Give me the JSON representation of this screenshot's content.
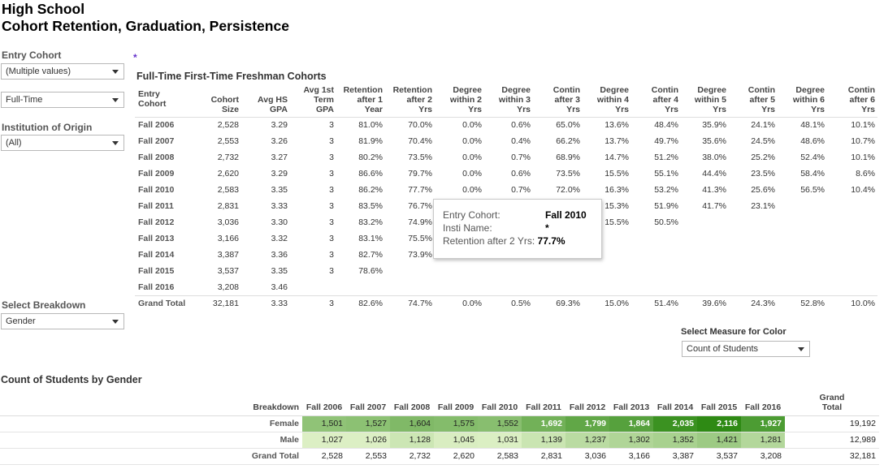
{
  "header": {
    "line1": "High School",
    "line2": "Cohort Retention, Graduation, Persistence"
  },
  "filters": {
    "entry_cohort_label": "Entry Cohort",
    "entry_cohort_value": "(Multiple values)",
    "enrollment_value": "Full-Time",
    "institution_label": "Institution of Origin",
    "institution_value": "(All)",
    "breakdown_label": "Select Breakdown",
    "breakdown_value": "Gender",
    "measure_label": "Select Measure for Color",
    "measure_value": "Count of Students"
  },
  "star_marker": "*",
  "cohort_table": {
    "title": "Full-Time First-Time Freshman Cohorts",
    "headers": [
      [
        "Entry Cohort"
      ],
      [
        "Cohort",
        "Size"
      ],
      [
        "Avg HS",
        "GPA"
      ],
      [
        "Avg 1st",
        "Term",
        "GPA"
      ],
      [
        "Retention",
        "after 1",
        "Year"
      ],
      [
        "Retention",
        "after 2",
        "Yrs"
      ],
      [
        "Degree",
        "within 2",
        "Yrs"
      ],
      [
        "Degree",
        "within 3",
        "Yrs"
      ],
      [
        "Contin",
        "after 3",
        "Yrs"
      ],
      [
        "Degree",
        "within 4",
        "Yrs"
      ],
      [
        "Contin",
        "after 4",
        "Yrs"
      ],
      [
        "Degree",
        "within 5",
        "Yrs"
      ],
      [
        "Contin",
        "after 5",
        "Yrs"
      ],
      [
        "Degree",
        "within 6",
        "Yrs"
      ],
      [
        "Contin",
        "after 6",
        "Yrs"
      ]
    ],
    "rows": [
      [
        "Fall 2006",
        "2,528",
        "3.29",
        "3",
        "81.0%",
        "70.0%",
        "0.0%",
        "0.6%",
        "65.0%",
        "13.6%",
        "48.4%",
        "35.9%",
        "24.1%",
        "48.1%",
        "10.1%"
      ],
      [
        "Fall 2007",
        "2,553",
        "3.26",
        "3",
        "81.9%",
        "70.4%",
        "0.0%",
        "0.4%",
        "66.2%",
        "13.7%",
        "49.7%",
        "35.6%",
        "24.5%",
        "48.6%",
        "10.7%"
      ],
      [
        "Fall 2008",
        "2,732",
        "3.27",
        "3",
        "80.2%",
        "73.5%",
        "0.0%",
        "0.7%",
        "68.9%",
        "14.7%",
        "51.2%",
        "38.0%",
        "25.2%",
        "52.4%",
        "10.1%"
      ],
      [
        "Fall 2009",
        "2,620",
        "3.29",
        "3",
        "86.6%",
        "79.7%",
        "0.0%",
        "0.6%",
        "73.5%",
        "15.5%",
        "55.1%",
        "44.4%",
        "23.5%",
        "58.4%",
        "8.6%"
      ],
      [
        "Fall 2010",
        "2,583",
        "3.35",
        "3",
        "86.2%",
        "77.7%",
        "0.0%",
        "0.7%",
        "72.0%",
        "16.3%",
        "53.2%",
        "41.3%",
        "25.6%",
        "56.5%",
        "10.4%"
      ],
      [
        "Fall 2011",
        "2,831",
        "3.33",
        "3",
        "83.5%",
        "76.7%",
        "",
        "",
        "",
        "15.3%",
        "51.9%",
        "41.7%",
        "23.1%",
        "",
        ""
      ],
      [
        "Fall 2012",
        "3,036",
        "3.30",
        "3",
        "83.2%",
        "74.9%",
        "",
        "",
        "",
        "15.5%",
        "50.5%",
        "",
        "",
        "",
        ""
      ],
      [
        "Fall 2013",
        "3,166",
        "3.32",
        "3",
        "83.1%",
        "75.5%",
        "",
        "",
        "",
        "",
        "",
        "",
        "",
        "",
        ""
      ],
      [
        "Fall 2014",
        "3,387",
        "3.36",
        "3",
        "82.7%",
        "73.9%",
        "",
        "",
        "",
        "",
        "",
        "",
        "",
        "",
        ""
      ],
      [
        "Fall 2015",
        "3,537",
        "3.35",
        "3",
        "78.6%",
        "",
        "",
        "",
        "",
        "",
        "",
        "",
        "",
        "",
        ""
      ],
      [
        "Fall 2016",
        "3,208",
        "3.46",
        "",
        "",
        "",
        "",
        "",
        "",
        "",
        "",
        "",
        "",
        "",
        ""
      ]
    ],
    "total": [
      "Grand Total",
      "32,181",
      "3.33",
      "3",
      "82.6%",
      "74.7%",
      "0.0%",
      "0.5%",
      "69.3%",
      "15.0%",
      "51.4%",
      "39.6%",
      "24.3%",
      "52.8%",
      "10.0%"
    ]
  },
  "tooltip": {
    "cohort_label": "Entry Cohort:",
    "cohort_value": "Fall 2010",
    "inst_label": "Insti Name:",
    "inst_value": "*",
    "retention_label": "Retention after 2 Yrs:",
    "retention_value": "77.7%"
  },
  "gender_table": {
    "title": "Count of Students by Gender",
    "row_header": "Breakdown",
    "columns": [
      "Fall 2006",
      "Fall 2007",
      "Fall 2008",
      "Fall 2009",
      "Fall 2010",
      "Fall 2011",
      "Fall 2012",
      "Fall 2013",
      "Fall 2014",
      "Fall 2015",
      "Fall 2016"
    ],
    "grand_total_header": [
      "Grand",
      "Total"
    ],
    "rows": [
      {
        "label": "Female",
        "values": [
          "1,501",
          "1,527",
          "1,604",
          "1,575",
          "1,552",
          "1,692",
          "1,799",
          "1,864",
          "2,035",
          "2,116",
          "1,927"
        ],
        "total": "19,192"
      },
      {
        "label": "Male",
        "values": [
          "1,027",
          "1,026",
          "1,128",
          "1,045",
          "1,031",
          "1,139",
          "1,237",
          "1,302",
          "1,352",
          "1,421",
          "1,281"
        ],
        "total": "12,989"
      }
    ],
    "grand_total": {
      "label": "Grand Total",
      "values": [
        "2,528",
        "2,553",
        "2,732",
        "2,620",
        "2,583",
        "2,831",
        "3,036",
        "3,166",
        "3,387",
        "3,537",
        "3,208"
      ],
      "total": "32,181"
    },
    "color_scale": {
      "low": "#dcefc4",
      "high": "#2e8a14",
      "min": 1026,
      "max": 2116
    }
  }
}
